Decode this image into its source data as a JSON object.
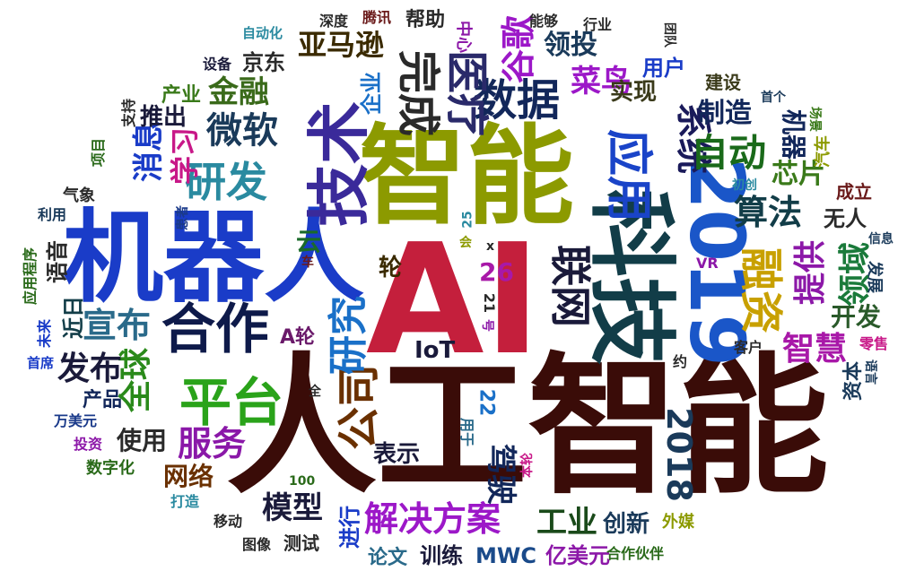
{
  "words": [
    {
      "text": "人工智能",
      "color": "#3a0c08"
    },
    {
      "text": "AI",
      "color": "#c41f3c"
    },
    {
      "text": "智能",
      "color": "#8c9a00"
    },
    {
      "text": "机器人",
      "color": "#1a3cc8"
    },
    {
      "text": "科技",
      "color": "#123d48"
    },
    {
      "text": "2019",
      "color": "#1a56c8"
    },
    {
      "text": "技术",
      "color": "#3a2a9a"
    },
    {
      "text": "合作",
      "color": "#0e1a4a"
    },
    {
      "text": "平台",
      "color": "#2aa31a"
    },
    {
      "text": "公司",
      "color": "#6a3000"
    },
    {
      "text": "研究",
      "color": "#1a70c8"
    },
    {
      "text": "应用",
      "color": "#1a44c8"
    },
    {
      "text": "数据",
      "color": "#12275a"
    },
    {
      "text": "医疗",
      "color": "#2a2a6a"
    },
    {
      "text": "完成",
      "color": "#2a2a2a"
    },
    {
      "text": "联网",
      "color": "#1a1a3a"
    },
    {
      "text": "融资",
      "color": "#c8a000"
    },
    {
      "text": "解决方案",
      "color": "#9c18c8"
    },
    {
      "text": "驾驶",
      "color": "#12275a"
    },
    {
      "text": "工业",
      "color": "#1a4a1a"
    },
    {
      "text": "服务",
      "color": "#8a18a8"
    },
    {
      "text": "研发",
      "color": "#2a8aa0"
    },
    {
      "text": "微软",
      "color": "#1a3a5a"
    },
    {
      "text": "系统",
      "color": "#1a1a5a"
    },
    {
      "text": "自动",
      "color": "#1a6a1a"
    },
    {
      "text": "算法",
      "color": "#123d48"
    },
    {
      "text": "提供",
      "color": "#8c18a8"
    },
    {
      "text": "领域",
      "color": "#1a7a3a"
    },
    {
      "text": "智慧",
      "color": "#a818a8"
    },
    {
      "text": "宣布",
      "color": "#2a6a8a"
    },
    {
      "text": "全球",
      "color": "#2a8a1a"
    },
    {
      "text": "发布",
      "color": "#1a1a3a"
    },
    {
      "text": "模型",
      "color": "#1a1a3a"
    },
    {
      "text": "2018",
      "color": "#1a3a5a"
    },
    {
      "text": "金融",
      "color": "#3a6a1a"
    },
    {
      "text": "菜鸟",
      "color": "#9c18c8"
    },
    {
      "text": "亚马逊",
      "color": "#3a2a00"
    },
    {
      "text": "谷歌",
      "color": "#9c18c8"
    },
    {
      "text": "领投",
      "color": "#1a3a5a"
    },
    {
      "text": "制造",
      "color": "#12275a"
    },
    {
      "text": "学习",
      "color": "#c81888"
    },
    {
      "text": "消息",
      "color": "#1a3cc8"
    },
    {
      "text": "推出",
      "color": "#1a1a3a"
    },
    {
      "text": "云",
      "color": "#1a6a2a"
    },
    {
      "text": "轮",
      "color": "#3a2a00"
    },
    {
      "text": "芯片",
      "color": "#3a7a1a"
    },
    {
      "text": "机器",
      "color": "#12275a"
    },
    {
      "text": "开发",
      "color": "#2a5a2a"
    },
    {
      "text": "创新",
      "color": "#1a3a5a"
    },
    {
      "text": "网络",
      "color": "#6a3000"
    },
    {
      "text": "使用",
      "color": "#2a2a2a"
    },
    {
      "text": "表示",
      "color": "#1a1a3a"
    },
    {
      "text": "训练",
      "color": "#1a1a3a"
    },
    {
      "text": "MWC",
      "color": "#1a4a8a"
    },
    {
      "text": "IoT",
      "color": "#1a1a3a"
    },
    {
      "text": "A轮",
      "color": "#6a1a6a"
    },
    {
      "text": "26",
      "color": "#a818a8"
    },
    {
      "text": "22",
      "color": "#1a70c8"
    },
    {
      "text": "用户",
      "color": "#1a3cc8"
    },
    {
      "text": "实现",
      "color": "#3a3a1a"
    },
    {
      "text": "企业",
      "color": "#1a70c8"
    },
    {
      "text": "京东",
      "color": "#2a2a2a"
    },
    {
      "text": "进行",
      "color": "#1a3cc8"
    },
    {
      "text": "语音",
      "color": "#2a2a2a"
    },
    {
      "text": "近日",
      "color": "#123d48"
    },
    {
      "text": "无人",
      "color": "#2a2a2a"
    },
    {
      "text": "帮助",
      "color": "#2a2a2a"
    },
    {
      "text": "亿美元",
      "color": "#8c18a8"
    },
    {
      "text": "论文",
      "color": "#2a6a8a"
    },
    {
      "text": "产品",
      "color": "#12275a"
    },
    {
      "text": "汽车",
      "color": "#8c9a00"
    },
    {
      "text": "资本",
      "color": "#1a3a5a"
    },
    {
      "text": "成立",
      "color": "#6a1a1a"
    },
    {
      "text": "发展",
      "color": "#1a3a5a"
    },
    {
      "text": "建设",
      "color": "#3a3a1a"
    },
    {
      "text": "产业",
      "color": "#3a7a1a"
    },
    {
      "text": "腾讯",
      "color": "#6a1a1a"
    },
    {
      "text": "中心",
      "color": "#8c18a8"
    },
    {
      "text": "能够",
      "color": "#2a2a2a"
    },
    {
      "text": "行业",
      "color": "#2a2a2a"
    },
    {
      "text": "深度",
      "color": "#2a2a2a"
    },
    {
      "text": "自动化",
      "color": "#2a8aa0"
    },
    {
      "text": "设备",
      "color": "#1a1a3a"
    },
    {
      "text": "支持",
      "color": "#2a2a2a"
    },
    {
      "text": "项目",
      "color": "#2a6a1a"
    },
    {
      "text": "气象",
      "color": "#2a2a2a"
    },
    {
      "text": "利用",
      "color": "#1a3a5a"
    },
    {
      "text": "应用程序",
      "color": "#2a6a1a"
    },
    {
      "text": "未来",
      "color": "#1a3cc8"
    },
    {
      "text": "首席",
      "color": "#1a3cc8"
    },
    {
      "text": "万美元",
      "color": "#1a3a8a"
    },
    {
      "text": "投资",
      "color": "#8c18a8"
    },
    {
      "text": "数字化",
      "color": "#2a6a1a"
    },
    {
      "text": "打造",
      "color": "#2a8aa0"
    },
    {
      "text": "移动",
      "color": "#2a2a2a"
    },
    {
      "text": "图像",
      "color": "#2a2a2a"
    },
    {
      "text": "测试",
      "color": "#2a2a2a"
    },
    {
      "text": "外媒",
      "color": "#8c9a00"
    },
    {
      "text": "合作伙伴",
      "color": "#2a6a1a"
    },
    {
      "text": "客户",
      "color": "#2a2a2a"
    },
    {
      "text": "零售",
      "color": "#c81888"
    },
    {
      "text": "语言",
      "color": "#1a3a5a"
    },
    {
      "text": "信息",
      "color": "#1a3a5a"
    },
    {
      "text": "场景",
      "color": "#3a7a1a"
    },
    {
      "text": "首个",
      "color": "#1a3a5a"
    },
    {
      "text": "初创",
      "color": "#2a8aa0"
    },
    {
      "text": "团队",
      "color": "#2a2a2a"
    },
    {
      "text": "VR",
      "color": "#8c18a8"
    },
    {
      "text": "约",
      "color": "#2a2a2a"
    },
    {
      "text": "本轮",
      "color": "#c81888"
    },
    {
      "text": "用于",
      "color": "#2a6a8a"
    },
    {
      "text": "21",
      "color": "#2a2a2a"
    },
    {
      "text": "号",
      "color": "#8c18a8"
    },
    {
      "text": "100",
      "color": "#2a6a1a"
    },
    {
      "text": "全",
      "color": "#2a2a2a"
    },
    {
      "text": "车",
      "color": "#6a1a1a"
    },
    {
      "text": "患者",
      "color": "#1a3a8a"
    },
    {
      "text": "25",
      "color": "#2a8aa0"
    },
    {
      "text": "会",
      "color": "#8c9a00"
    },
    {
      "text": "x",
      "color": "#2a2a2a"
    }
  ]
}
